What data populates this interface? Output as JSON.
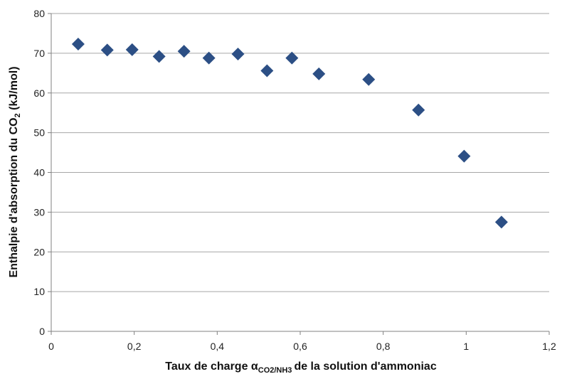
{
  "chart_data": {
    "type": "scatter",
    "title": "",
    "xlabel": {
      "main": "Taux de charge α",
      "subscript": "CO2/NH3",
      "rest": "de la solution d'ammoniac"
    },
    "ylabel": {
      "main": "Enthalpie d'absorption du CO",
      "subscript": "2",
      "rest": " (kJ/mol)"
    },
    "xlim": [
      0,
      1.2
    ],
    "ylim": [
      0,
      80
    ],
    "x_ticks": [
      0,
      0.2,
      0.4,
      0.6,
      0.8,
      1,
      1.2
    ],
    "x_tick_labels": [
      "0",
      "0,2",
      "0,4",
      "0,6",
      "0,8",
      "1",
      "1,2"
    ],
    "y_ticks": [
      0,
      10,
      20,
      30,
      40,
      50,
      60,
      70,
      80
    ],
    "y_tick_labels": [
      "0",
      "10",
      "20",
      "30",
      "40",
      "50",
      "60",
      "70",
      "80"
    ],
    "grid": "horizontal",
    "legend": "none",
    "marker": "diamond",
    "marker_color": "#2c4f85",
    "gridline_color": "#a6a6a6",
    "axis_color": "#808080",
    "series": [
      {
        "x": [
          0.065,
          0.135,
          0.195,
          0.26,
          0.32,
          0.38,
          0.45,
          0.52,
          0.58,
          0.645,
          0.765,
          0.885,
          0.995,
          1.085
        ],
        "y": [
          72.3,
          70.8,
          70.9,
          69.2,
          70.5,
          68.8,
          69.8,
          65.6,
          68.8,
          64.8,
          63.4,
          55.7,
          44.1,
          27.5
        ]
      }
    ]
  }
}
